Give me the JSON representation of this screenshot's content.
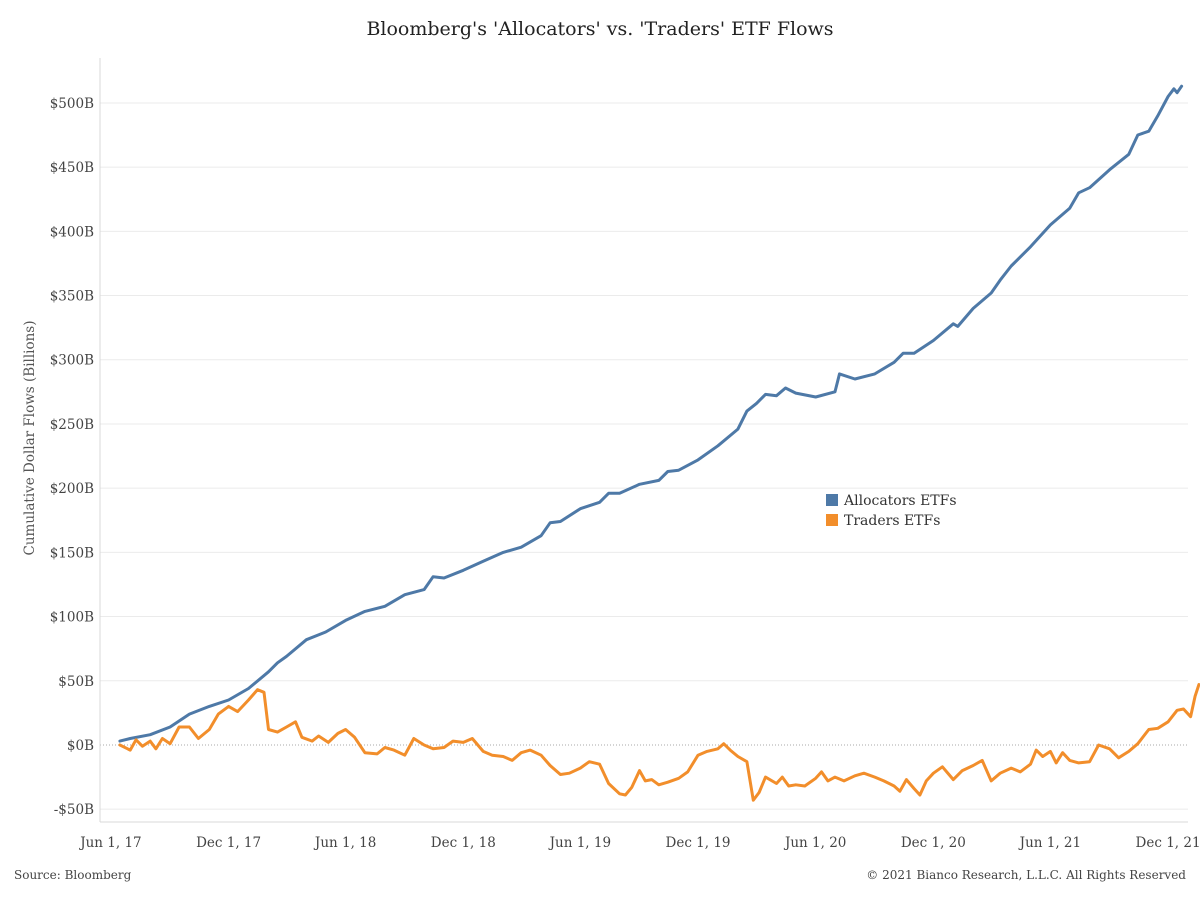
{
  "chart_data": {
    "type": "line",
    "title": "Bloomberg's 'Allocators' vs. 'Traders' ETF Flows",
    "ylabel": "Cumulative Dollar Flows (Billions)",
    "xlabel": "",
    "ylim": [
      -60,
      535
    ],
    "xlim": [
      "2017-05-15",
      "2022-01-01"
    ],
    "y_ticks": [
      -50,
      0,
      50,
      100,
      150,
      200,
      250,
      300,
      350,
      400,
      450,
      500
    ],
    "y_tick_labels": [
      "-$50B",
      "$0B",
      "$50B",
      "$100B",
      "$150B",
      "$200B",
      "$250B",
      "$300B",
      "$350B",
      "$400B",
      "$450B",
      "$500B"
    ],
    "x_ticks": [
      "2017-06-01",
      "2017-12-01",
      "2018-06-01",
      "2018-12-01",
      "2019-06-01",
      "2019-12-01",
      "2020-06-01",
      "2020-12-01",
      "2021-06-01",
      "2021-12-01"
    ],
    "x_tick_labels": [
      "Jun 1, 17",
      "Dec 1, 17",
      "Jun 1, 18",
      "Dec 1, 18",
      "Jun 1, 19",
      "Dec 1, 19",
      "Jun 1, 20",
      "Dec 1, 20",
      "Jun 1, 21",
      "Dec 1, 21"
    ],
    "grid": true,
    "legend_position": "center-right",
    "series": [
      {
        "name": "Allocators ETFs",
        "color": "#4e79a7",
        "points": [
          [
            "2017-06-15",
            3
          ],
          [
            "2017-07-01",
            5
          ],
          [
            "2017-08-01",
            8
          ],
          [
            "2017-09-01",
            14
          ],
          [
            "2017-10-01",
            24
          ],
          [
            "2017-11-01",
            30
          ],
          [
            "2017-12-01",
            35
          ],
          [
            "2018-01-01",
            44
          ],
          [
            "2018-02-01",
            57
          ],
          [
            "2018-02-15",
            64
          ],
          [
            "2018-03-01",
            69
          ],
          [
            "2018-04-01",
            82
          ],
          [
            "2018-05-01",
            88
          ],
          [
            "2018-06-01",
            97
          ],
          [
            "2018-07-01",
            104
          ],
          [
            "2018-08-01",
            108
          ],
          [
            "2018-09-01",
            117
          ],
          [
            "2018-10-01",
            121
          ],
          [
            "2018-10-15",
            131
          ],
          [
            "2018-11-01",
            130
          ],
          [
            "2018-12-01",
            136
          ],
          [
            "2019-01-01",
            143
          ],
          [
            "2019-02-01",
            150
          ],
          [
            "2019-03-01",
            154
          ],
          [
            "2019-04-01",
            163
          ],
          [
            "2019-04-15",
            173
          ],
          [
            "2019-05-01",
            174
          ],
          [
            "2019-06-01",
            184
          ],
          [
            "2019-07-01",
            189
          ],
          [
            "2019-07-15",
            196
          ],
          [
            "2019-08-01",
            196
          ],
          [
            "2019-09-01",
            203
          ],
          [
            "2019-10-01",
            206
          ],
          [
            "2019-10-15",
            213
          ],
          [
            "2019-11-01",
            214
          ],
          [
            "2019-12-01",
            222
          ],
          [
            "2020-01-01",
            233
          ],
          [
            "2020-02-01",
            246
          ],
          [
            "2020-02-15",
            260
          ],
          [
            "2020-03-01",
            266
          ],
          [
            "2020-03-15",
            273
          ],
          [
            "2020-04-01",
            272
          ],
          [
            "2020-04-15",
            278
          ],
          [
            "2020-05-01",
            274
          ],
          [
            "2020-06-01",
            271
          ],
          [
            "2020-07-01",
            275
          ],
          [
            "2020-07-08",
            289
          ],
          [
            "2020-08-01",
            285
          ],
          [
            "2020-09-01",
            289
          ],
          [
            "2020-10-01",
            298
          ],
          [
            "2020-10-15",
            305
          ],
          [
            "2020-11-01",
            305
          ],
          [
            "2020-12-01",
            315
          ],
          [
            "2021-01-01",
            328
          ],
          [
            "2021-01-08",
            326
          ],
          [
            "2021-02-01",
            340
          ],
          [
            "2021-03-01",
            352
          ],
          [
            "2021-03-15",
            362
          ],
          [
            "2021-04-01",
            373
          ],
          [
            "2021-05-01",
            388
          ],
          [
            "2021-06-01",
            405
          ],
          [
            "2021-07-01",
            418
          ],
          [
            "2021-07-15",
            430
          ],
          [
            "2021-08-01",
            434
          ],
          [
            "2021-09-01",
            448
          ],
          [
            "2021-10-01",
            460
          ],
          [
            "2021-10-15",
            475
          ],
          [
            "2021-11-01",
            478
          ],
          [
            "2021-11-15",
            490
          ],
          [
            "2021-12-01",
            505
          ],
          [
            "2021-12-10",
            511
          ],
          [
            "2021-12-15",
            508
          ],
          [
            "2021-12-22",
            513
          ]
        ]
      },
      {
        "name": "Traders ETFs",
        "color": "#f28e2b",
        "points": [
          [
            "2017-06-15",
            0
          ],
          [
            "2017-07-01",
            -4
          ],
          [
            "2017-07-10",
            4
          ],
          [
            "2017-07-20",
            -1
          ],
          [
            "2017-08-01",
            3
          ],
          [
            "2017-08-10",
            -3
          ],
          [
            "2017-08-20",
            5
          ],
          [
            "2017-09-01",
            1
          ],
          [
            "2017-09-15",
            14
          ],
          [
            "2017-10-01",
            14
          ],
          [
            "2017-10-15",
            5
          ],
          [
            "2017-11-01",
            12
          ],
          [
            "2017-11-15",
            24
          ],
          [
            "2017-12-01",
            30
          ],
          [
            "2017-12-15",
            26
          ],
          [
            "2018-01-01",
            35
          ],
          [
            "2018-01-15",
            43
          ],
          [
            "2018-01-25",
            41
          ],
          [
            "2018-02-01",
            12
          ],
          [
            "2018-02-15",
            10
          ],
          [
            "2018-03-01",
            14
          ],
          [
            "2018-03-15",
            18
          ],
          [
            "2018-03-25",
            6
          ],
          [
            "2018-04-10",
            3
          ],
          [
            "2018-04-20",
            7
          ],
          [
            "2018-05-05",
            2
          ],
          [
            "2018-05-20",
            9
          ],
          [
            "2018-06-01",
            12
          ],
          [
            "2018-06-15",
            6
          ],
          [
            "2018-07-01",
            -6
          ],
          [
            "2018-07-20",
            -7
          ],
          [
            "2018-08-01",
            -2
          ],
          [
            "2018-08-15",
            -4
          ],
          [
            "2018-09-01",
            -8
          ],
          [
            "2018-09-15",
            5
          ],
          [
            "2018-10-01",
            0
          ],
          [
            "2018-10-15",
            -3
          ],
          [
            "2018-11-01",
            -2
          ],
          [
            "2018-11-15",
            3
          ],
          [
            "2018-12-01",
            2
          ],
          [
            "2018-12-15",
            5
          ],
          [
            "2019-01-01",
            -5
          ],
          [
            "2019-01-15",
            -8
          ],
          [
            "2019-02-01",
            -9
          ],
          [
            "2019-02-15",
            -12
          ],
          [
            "2019-03-01",
            -6
          ],
          [
            "2019-03-15",
            -4
          ],
          [
            "2019-04-01",
            -8
          ],
          [
            "2019-04-15",
            -16
          ],
          [
            "2019-05-01",
            -23
          ],
          [
            "2019-05-15",
            -22
          ],
          [
            "2019-06-01",
            -18
          ],
          [
            "2019-06-15",
            -13
          ],
          [
            "2019-07-01",
            -15
          ],
          [
            "2019-07-15",
            -30
          ],
          [
            "2019-08-01",
            -38
          ],
          [
            "2019-08-10",
            -39
          ],
          [
            "2019-08-20",
            -33
          ],
          [
            "2019-09-01",
            -20
          ],
          [
            "2019-09-10",
            -28
          ],
          [
            "2019-09-20",
            -27
          ],
          [
            "2019-10-01",
            -31
          ],
          [
            "2019-10-15",
            -29
          ],
          [
            "2019-11-01",
            -26
          ],
          [
            "2019-11-15",
            -21
          ],
          [
            "2019-12-01",
            -8
          ],
          [
            "2019-12-15",
            -5
          ],
          [
            "2020-01-01",
            -3
          ],
          [
            "2020-01-10",
            1
          ],
          [
            "2020-01-20",
            -4
          ],
          [
            "2020-02-01",
            -9
          ],
          [
            "2020-02-15",
            -13
          ],
          [
            "2020-02-25",
            -43
          ],
          [
            "2020-03-05",
            -37
          ],
          [
            "2020-03-15",
            -25
          ],
          [
            "2020-04-01",
            -30
          ],
          [
            "2020-04-10",
            -25
          ],
          [
            "2020-04-20",
            -32
          ],
          [
            "2020-05-01",
            -31
          ],
          [
            "2020-05-15",
            -32
          ],
          [
            "2020-06-01",
            -26
          ],
          [
            "2020-06-10",
            -21
          ],
          [
            "2020-06-20",
            -28
          ],
          [
            "2020-07-01",
            -25
          ],
          [
            "2020-07-15",
            -28
          ],
          [
            "2020-08-01",
            -24
          ],
          [
            "2020-08-15",
            -22
          ],
          [
            "2020-09-01",
            -25
          ],
          [
            "2020-09-15",
            -28
          ],
          [
            "2020-10-01",
            -32
          ],
          [
            "2020-10-10",
            -36
          ],
          [
            "2020-10-20",
            -27
          ],
          [
            "2020-11-01",
            -34
          ],
          [
            "2020-11-10",
            -39
          ],
          [
            "2020-11-20",
            -28
          ],
          [
            "2020-12-01",
            -22
          ],
          [
            "2020-12-15",
            -17
          ],
          [
            "2021-01-01",
            -27
          ],
          [
            "2021-01-15",
            -20
          ],
          [
            "2021-02-01",
            -16
          ],
          [
            "2021-02-15",
            -12
          ],
          [
            "2021-03-01",
            -28
          ],
          [
            "2021-03-15",
            -22
          ],
          [
            "2021-04-01",
            -18
          ],
          [
            "2021-04-15",
            -21
          ],
          [
            "2021-05-01",
            -15
          ],
          [
            "2021-05-10",
            -4
          ],
          [
            "2021-05-20",
            -9
          ],
          [
            "2021-06-01",
            -5
          ],
          [
            "2021-06-10",
            -14
          ],
          [
            "2021-06-20",
            -6
          ],
          [
            "2021-07-01",
            -12
          ],
          [
            "2021-07-15",
            -14
          ],
          [
            "2021-08-01",
            -13
          ],
          [
            "2021-08-15",
            0
          ],
          [
            "2021-09-01",
            -3
          ],
          [
            "2021-09-15",
            -10
          ],
          [
            "2021-10-01",
            -5
          ],
          [
            "2021-10-15",
            1
          ],
          [
            "2021-11-01",
            12
          ],
          [
            "2021-11-15",
            13
          ],
          [
            "2021-12-01",
            18
          ],
          [
            "2021-12-15",
            27
          ],
          [
            "2021-12-25",
            28
          ],
          [
            "2022-01-05",
            22
          ],
          [
            "2022-01-12",
            38
          ],
          [
            "2022-01-18",
            47
          ]
        ]
      }
    ]
  },
  "footer": {
    "source": "Source: Bloomberg",
    "copyright": "© 2021 Bianco Research, L.L.C. All Rights Reserved"
  },
  "colors": {
    "allocators": "#4e79a7",
    "traders": "#f28e2b"
  }
}
